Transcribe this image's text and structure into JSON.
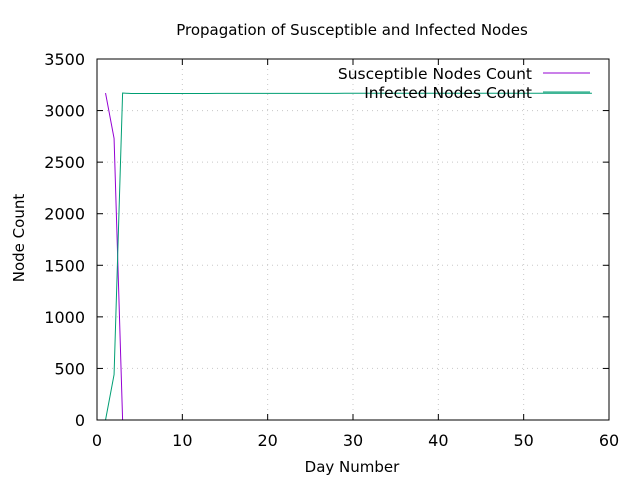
{
  "chart_data": {
    "type": "line",
    "title": "Propagation of Susceptible and Infected Nodes",
    "xlabel": "Day Number",
    "ylabel": "Node Count",
    "xlim": [
      0,
      60
    ],
    "ylim": [
      0,
      3500
    ],
    "xticks": [
      0,
      10,
      20,
      30,
      40,
      50,
      60
    ],
    "yticks": [
      0,
      500,
      1000,
      1500,
      2000,
      2500,
      3000,
      3500
    ],
    "grid": true,
    "legend_position": "top-right",
    "series": [
      {
        "name": "Susceptible Nodes Count",
        "color": "#9400d3",
        "x": [
          1,
          2,
          3
        ],
        "y": [
          3170,
          2730,
          0
        ]
      },
      {
        "name": "Infected Nodes Count",
        "color": "#009e73",
        "x": [
          1,
          2,
          3,
          4,
          5,
          6,
          7,
          8,
          9,
          10,
          11,
          12,
          13,
          14,
          15,
          16,
          17,
          18,
          19,
          20,
          21,
          22,
          23,
          24,
          25,
          26,
          27,
          28,
          29,
          30,
          31,
          32,
          33,
          34,
          35,
          36,
          37,
          38,
          39,
          40,
          41,
          42,
          43,
          44,
          45,
          46,
          47,
          48,
          49,
          50,
          51,
          52,
          53,
          54,
          55,
          56,
          57,
          58
        ],
        "y": [
          0,
          440,
          3170,
          3165,
          3165,
          3165,
          3165,
          3166,
          3166,
          3166,
          3166,
          3166,
          3166,
          3167,
          3167,
          3167,
          3167,
          3167,
          3167,
          3167,
          3167,
          3167,
          3167,
          3167,
          3167,
          3167,
          3167,
          3167,
          3168,
          3168,
          3168,
          3168,
          3168,
          3168,
          3168,
          3168,
          3168,
          3168,
          3168,
          3168,
          3168,
          3168,
          3168,
          3168,
          3168,
          3168,
          3168,
          3168,
          3168,
          3168,
          3168,
          3168,
          3168,
          3168,
          3168,
          3168,
          3168,
          3168
        ]
      }
    ]
  }
}
